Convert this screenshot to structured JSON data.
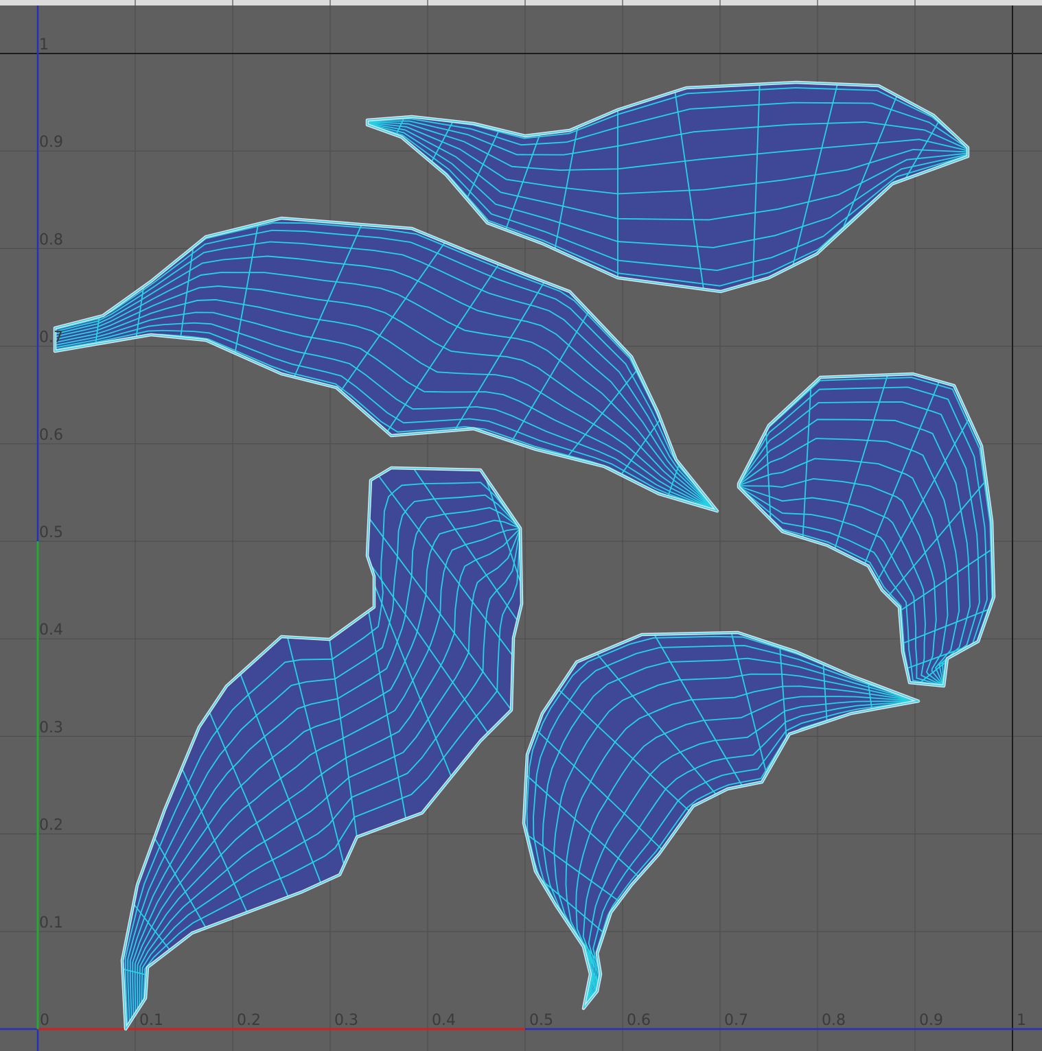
{
  "editor": {
    "u_labels": [
      "0",
      "0.1",
      "0.2",
      "0.3",
      "0.4",
      "0.5",
      "0.6",
      "0.7",
      "0.8",
      "0.9",
      "1"
    ],
    "v_labels": [
      "0.1",
      "0.2",
      "0.3",
      "0.4",
      "0.5",
      "0.6",
      "0.7",
      "0.8",
      "0.9",
      "1"
    ],
    "colors": {
      "background": "#5f5f5f",
      "grid": "#4e4e4e",
      "frame": "#1c1c1c",
      "shell_fill": "#3f4897",
      "wireframe": "#25d3e6",
      "outline": "#e4e2ee",
      "u_axis": "#cc2222",
      "v_axis": "#22aa33",
      "axis_blue": "#2630b8"
    }
  },
  "uv_shells": [
    {
      "name": "uv-shell-top-right"
    },
    {
      "name": "uv-shell-upper-left"
    },
    {
      "name": "uv-shell-right"
    },
    {
      "name": "uv-shell-lower-left"
    },
    {
      "name": "uv-shell-lower-middle"
    }
  ]
}
